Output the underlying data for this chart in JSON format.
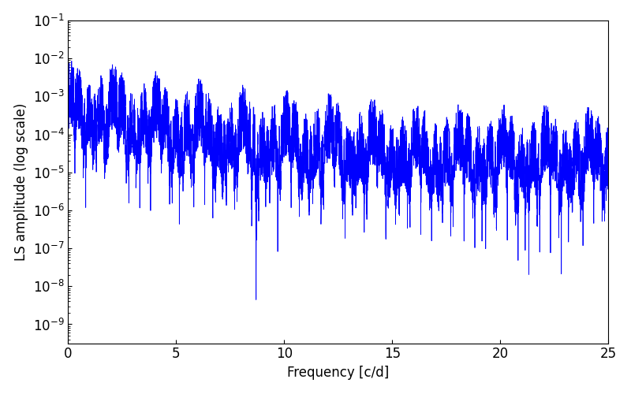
{
  "xlabel": "Frequency [c/d]",
  "ylabel": "LS amplitude (log scale)",
  "xlim": [
    0,
    25
  ],
  "ylim_log": [
    -9.5,
    -1
  ],
  "line_color": "blue",
  "line_width": 0.6,
  "background_color": "#ffffff",
  "figsize": [
    8.0,
    5.0
  ],
  "dpi": 100,
  "seed": 42,
  "n_points": 5000,
  "freq_max": 25.0
}
